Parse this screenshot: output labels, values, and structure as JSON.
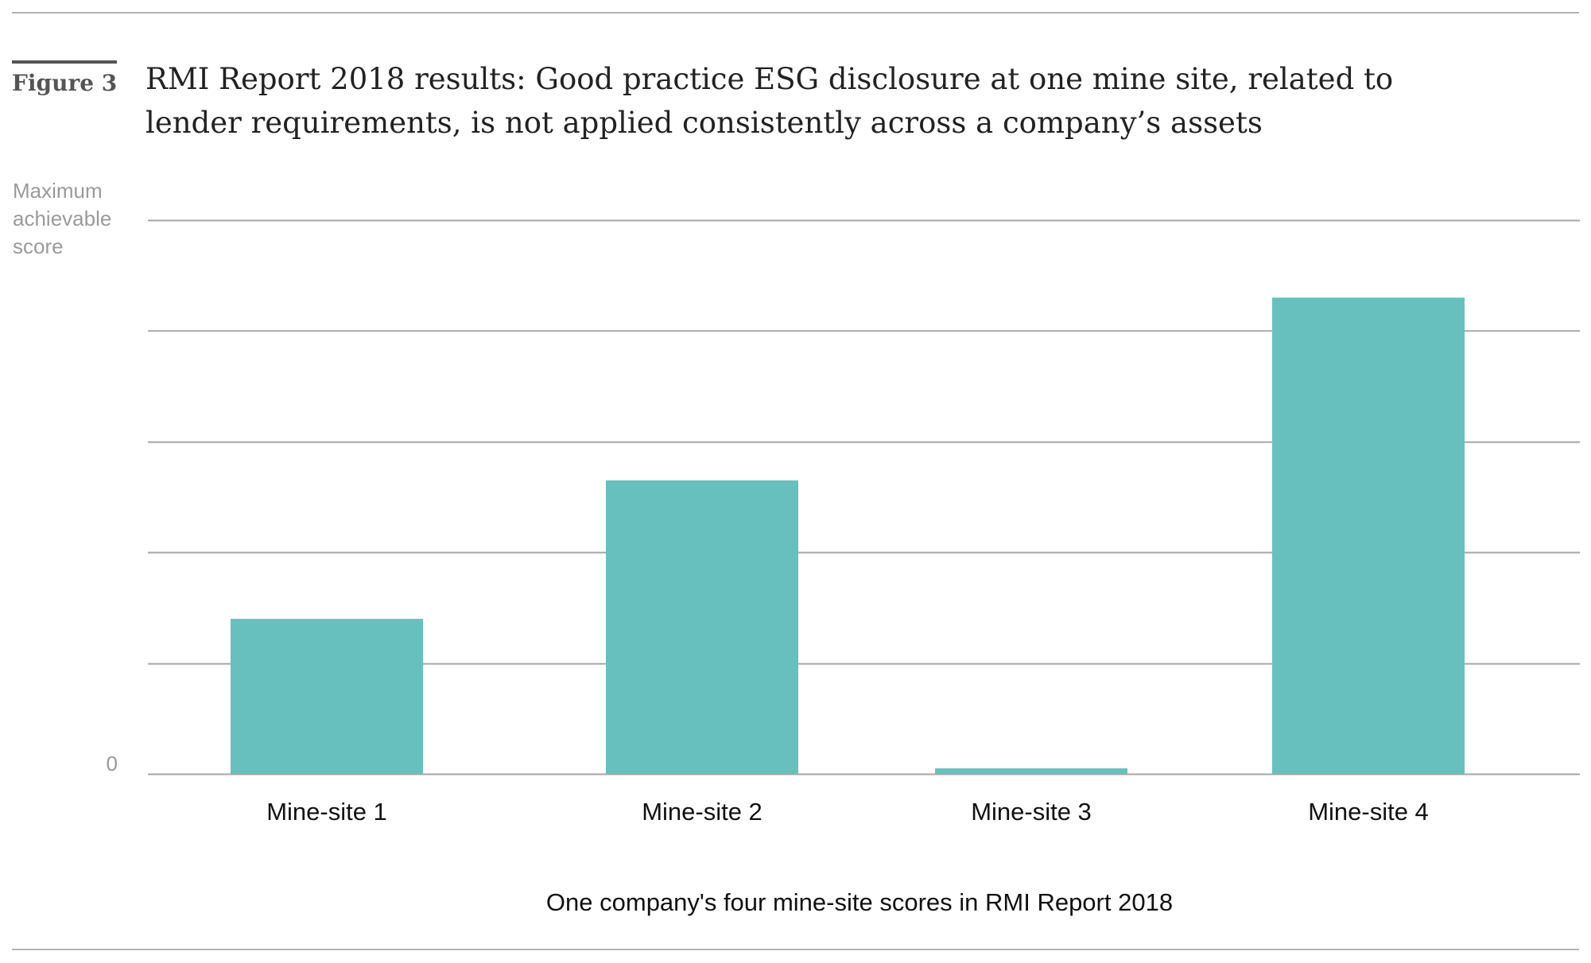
{
  "figure": {
    "label": "Figure 3",
    "title": "RMI Report 2018 results: Good practice ESG disclosure at one mine site, related to lender requirements, is not applied consistently across a company’s assets"
  },
  "chart_data": {
    "type": "bar",
    "categories": [
      "Mine-site 1",
      "Mine-site 2",
      "Mine-site 3",
      "Mine-site 4"
    ],
    "values": [
      0.28,
      0.53,
      0.01,
      0.86
    ],
    "xlabel": "One company's four mine-site scores in RMI Report 2018",
    "ylabel": "",
    "ylim": [
      0,
      1
    ],
    "y_tick_values": [
      0,
      0.2,
      0.4,
      0.6,
      0.8,
      1
    ],
    "y_tick_labels": [
      {
        "value": 0,
        "lines": [
          "0"
        ]
      },
      {
        "value": 1,
        "lines": [
          "Maximum",
          "achievable",
          "score"
        ]
      }
    ],
    "grid": true,
    "legend": "none",
    "colors": {
      "bar": "#67c0bd",
      "grid": "#a6a6a6"
    }
  }
}
